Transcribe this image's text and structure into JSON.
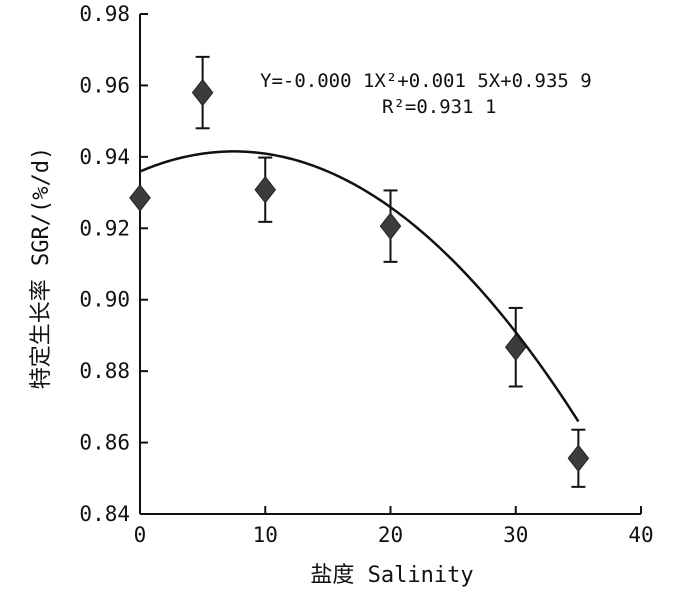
{
  "chart_data": {
    "type": "scatter",
    "xlabel": "盐度 Salinity",
    "ylabel": "特定生长率 SGR/(%/d)",
    "xlim": [
      0,
      40
    ],
    "ylim": [
      0.84,
      0.98
    ],
    "xticks": [
      0,
      10,
      20,
      30,
      40
    ],
    "yticks": [
      0.84,
      0.86,
      0.88,
      0.9,
      0.92,
      0.94,
      0.96,
      0.98
    ],
    "xtick_labels": [
      "0",
      "10",
      "20",
      "30",
      "40"
    ],
    "ytick_labels": [
      "0.84",
      "0.86",
      "0.88",
      "0.90",
      "0.92",
      "0.94",
      "0.96",
      "0.98"
    ],
    "grid": false,
    "marker": "diamond",
    "marker_color": "#3c3c3c",
    "series": [
      {
        "x": [
          0,
          5,
          10,
          20,
          30,
          35
        ],
        "y": [
          0.9285,
          0.958,
          0.9308,
          0.9206,
          0.8867,
          0.8556
        ],
        "error": [
          0.0,
          0.01,
          0.009,
          0.01,
          0.011,
          0.008
        ]
      }
    ],
    "fit": {
      "type": "quadratic",
      "coefficients": [
        -0.0001,
        0.0015,
        0.9359
      ],
      "equation_text": "Y=-0.000 1X²+0.001 5X+0.935 9",
      "r2_text": "R²=0.931 1"
    }
  }
}
